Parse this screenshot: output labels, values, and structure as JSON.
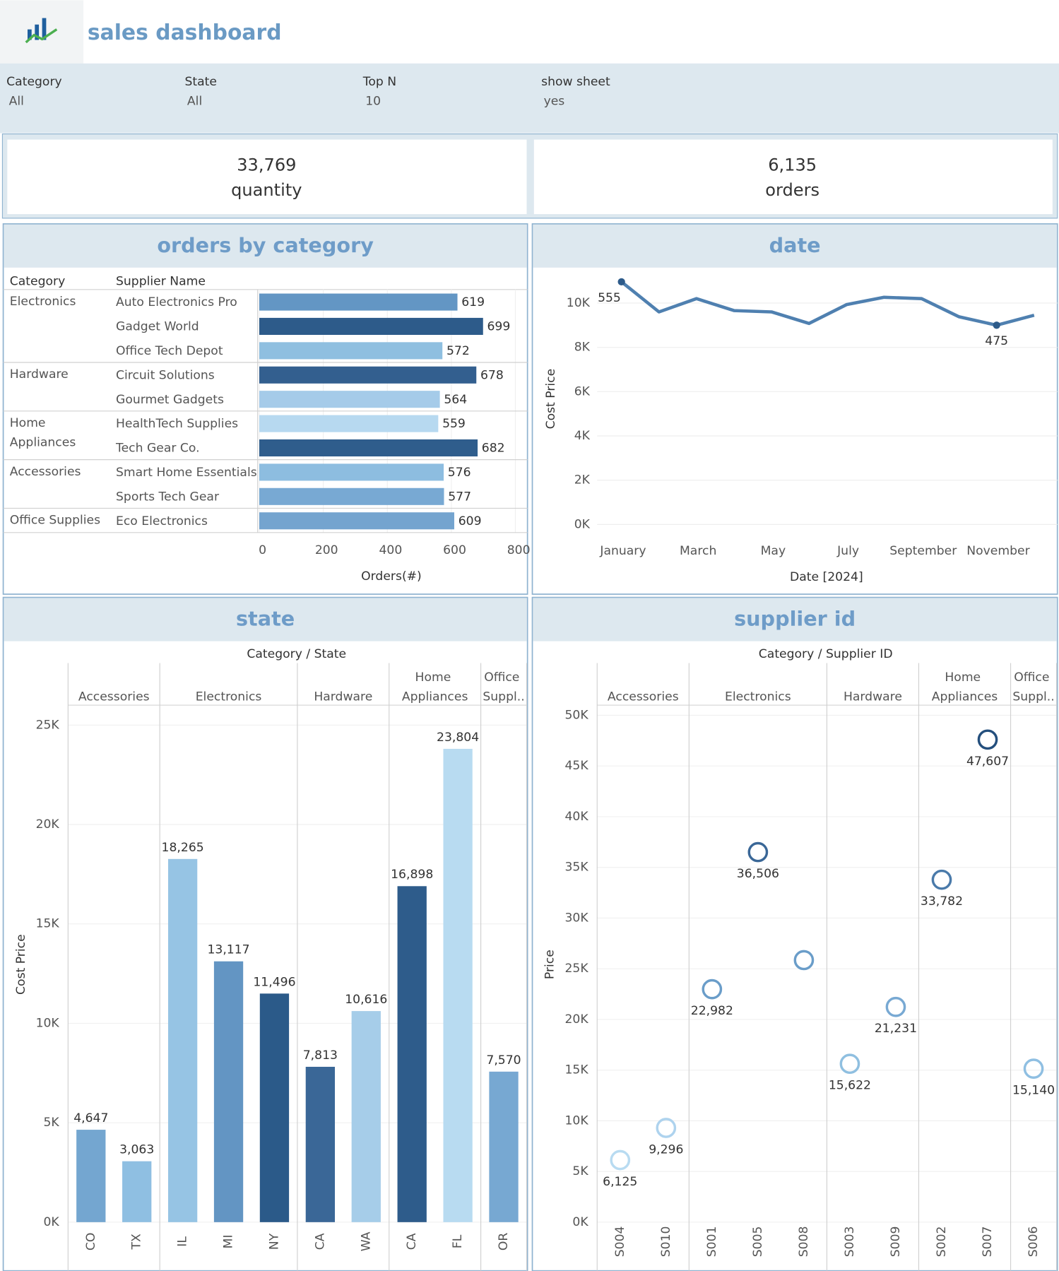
{
  "header": {
    "title": "sales dashboard"
  },
  "filters": [
    {
      "label": "Category",
      "value": "All"
    },
    {
      "label": "State",
      "value": "All"
    },
    {
      "label": "Top N",
      "value": "10"
    },
    {
      "label": "show sheet",
      "value": "yes"
    }
  ],
  "kpis": [
    {
      "value": "33,769",
      "label": "quantity"
    },
    {
      "value": "6,135",
      "label": "orders"
    }
  ],
  "chart_data": [
    {
      "type": "hbar",
      "title": "orders by category",
      "column_headers": [
        "Category",
        "Supplier Name"
      ],
      "x_label": "Orders(#)",
      "xlim": [
        0,
        820
      ],
      "xticks": [
        0,
        200,
        400,
        600,
        800
      ],
      "grid": true,
      "groups": [
        {
          "name": "Electronics",
          "categories": [
            "Auto Electronics Pro",
            "Gadget World",
            "Office Tech Depot"
          ],
          "values": [
            619,
            699,
            572
          ],
          "colors": [
            "#6396c4",
            "#2d5b8a",
            "#8fbfe0"
          ]
        },
        {
          "name": "Hardware",
          "categories": [
            "Circuit Solutions",
            "Gourmet Gadgets"
          ],
          "values": [
            678,
            564
          ],
          "colors": [
            "#335f8f",
            "#a5cbe9"
          ]
        },
        {
          "name": "Home Appliances",
          "categories": [
            "HealthTech Supplies",
            "Tech Gear Co."
          ],
          "values": [
            559,
            682
          ],
          "colors": [
            "#b7d9f0",
            "#2f5d8c"
          ]
        },
        {
          "name": "Accessories",
          "categories": [
            "Smart Home Essentials",
            "Sports Tech Gear"
          ],
          "values": [
            576,
            577
          ],
          "colors": [
            "#8dbde0",
            "#78a9d3"
          ]
        },
        {
          "name": "Office Supplies",
          "categories": [
            "Eco Electronics"
          ],
          "values": [
            609
          ],
          "colors": [
            "#74a4cf"
          ]
        }
      ]
    },
    {
      "type": "line",
      "title": "date",
      "x_label": "Date [2024]",
      "y_label": "Cost Price",
      "categories": [
        "January",
        null,
        "March",
        null,
        "May",
        null,
        "July",
        null,
        "September",
        null,
        "November",
        null
      ],
      "values": [
        10960,
        9600,
        10200,
        9660,
        9600,
        9080,
        9930,
        10260,
        10200,
        9380,
        9000,
        9450
      ],
      "point_labels": [
        555,
        null,
        null,
        null,
        null,
        null,
        null,
        null,
        null,
        null,
        475,
        null
      ],
      "color": "#4f80b0",
      "ylim": [
        0,
        11600
      ],
      "yticks": [
        {
          "value": 0,
          "label": "0K"
        },
        {
          "value": 2000,
          "label": "2K"
        },
        {
          "value": 4000,
          "label": "4K"
        },
        {
          "value": 6000,
          "label": "6K"
        },
        {
          "value": 8000,
          "label": "8K"
        },
        {
          "value": 10000,
          "label": "10K"
        }
      ],
      "grid": true
    },
    {
      "type": "grouped_bar",
      "title": "state",
      "header": "Category  /  State",
      "y_label": "Cost Price",
      "ylim": [
        0,
        26000
      ],
      "yticks": [
        {
          "value": 0,
          "label": "0K"
        },
        {
          "value": 5000,
          "label": "5K"
        },
        {
          "value": 10000,
          "label": "10K"
        },
        {
          "value": 15000,
          "label": "15K"
        },
        {
          "value": 20000,
          "label": "20K"
        },
        {
          "value": 25000,
          "label": "25K"
        }
      ],
      "grid": true,
      "groups": [
        {
          "name": "Accessories",
          "categories": [
            "CO",
            "TX"
          ],
          "values": [
            4647,
            3063
          ],
          "value_labels": [
            "4,647",
            "3,063"
          ],
          "colors": [
            "#74a6d0",
            "#8fbfe2"
          ]
        },
        {
          "name": "Electronics",
          "categories": [
            "IL",
            "MI",
            "NY"
          ],
          "values": [
            18265,
            13117,
            11496
          ],
          "value_labels": [
            "18,265",
            "13,117",
            "11,496"
          ],
          "colors": [
            "#96c4e4",
            "#6395c3",
            "#2b5a89"
          ]
        },
        {
          "name": "Hardware",
          "categories": [
            "CA",
            "WA"
          ],
          "values": [
            7813,
            10616
          ],
          "value_labels": [
            "7,813",
            "10,616"
          ],
          "colors": [
            "#3a6797",
            "#a6cde9"
          ]
        },
        {
          "name": "Home Appliances",
          "categories": [
            "CA",
            "FL"
          ],
          "values": [
            16898,
            23804
          ],
          "value_labels": [
            "16,898",
            "23,804"
          ],
          "colors": [
            "#2e5c8b",
            "#b8dbf1"
          ]
        },
        {
          "name": "Office Suppl..",
          "categories": [
            "OR"
          ],
          "values": [
            7570
          ],
          "value_labels": [
            "7,570"
          ],
          "colors": [
            "#77a8d2"
          ]
        }
      ]
    },
    {
      "type": "grouped_scatter",
      "title": "supplier id",
      "header": "Category  /  Supplier ID",
      "y_label": "Price",
      "ylim": [
        0,
        51000
      ],
      "yticks": [
        {
          "value": 0,
          "label": "0K"
        },
        {
          "value": 5000,
          "label": "5K"
        },
        {
          "value": 10000,
          "label": "10K"
        },
        {
          "value": 15000,
          "label": "15K"
        },
        {
          "value": 20000,
          "label": "20K"
        },
        {
          "value": 25000,
          "label": "25K"
        },
        {
          "value": 30000,
          "label": "30K"
        },
        {
          "value": 35000,
          "label": "35K"
        },
        {
          "value": 40000,
          "label": "40K"
        },
        {
          "value": 45000,
          "label": "45K"
        },
        {
          "value": 50000,
          "label": "50K"
        }
      ],
      "grid": true,
      "groups": [
        {
          "name": "Accessories",
          "categories": [
            "S004",
            "S010"
          ],
          "values": [
            6125,
            9296
          ],
          "value_labels": [
            "6,125",
            "9,296"
          ],
          "colors": [
            "#b8dbf1",
            "#aed3ee"
          ]
        },
        {
          "name": "Electronics",
          "categories": [
            "S001",
            "S005",
            "S008"
          ],
          "values": [
            22982,
            36506,
            25850
          ],
          "value_labels": [
            "22,982",
            "36,506",
            null
          ],
          "colors": [
            "#6a9dc9",
            "#3a6797",
            "#6a9dc9"
          ]
        },
        {
          "name": "Hardware",
          "categories": [
            "S003",
            "S009"
          ],
          "values": [
            15622,
            21231
          ],
          "value_labels": [
            "15,622",
            "21,231"
          ],
          "colors": [
            "#8fbfe0",
            "#78a9d3"
          ]
        },
        {
          "name": "Home Appliances",
          "categories": [
            "S002",
            "S007"
          ],
          "values": [
            33782,
            47607
          ],
          "value_labels": [
            "33,782",
            "47,607"
          ],
          "colors": [
            "#4a7aaa",
            "#244f7d"
          ]
        },
        {
          "name": "Office Suppl..",
          "categories": [
            "S006"
          ],
          "values": [
            15140
          ],
          "value_labels": [
            "15,140"
          ],
          "colors": [
            "#8fbfe2"
          ]
        }
      ]
    }
  ]
}
